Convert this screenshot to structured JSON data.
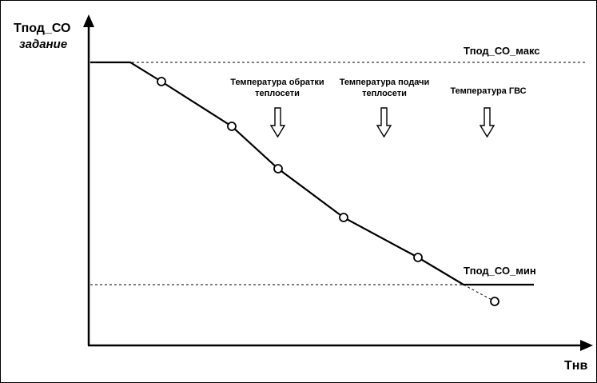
{
  "y_axis": {
    "title": "Тпод_СО",
    "subtitle": "задание"
  },
  "x_axis": {
    "title": "Тнв"
  },
  "limits": {
    "max_label": "Тпод_СО_макс",
    "min_label": "Тпод_СО_мин"
  },
  "annotations": [
    {
      "line1": "Температура обратки",
      "line2": "теплосети"
    },
    {
      "line1": "Температура подачи",
      "line2": "теплосети"
    },
    {
      "line1": "Температура ГВС",
      "line2": ""
    }
  ]
}
